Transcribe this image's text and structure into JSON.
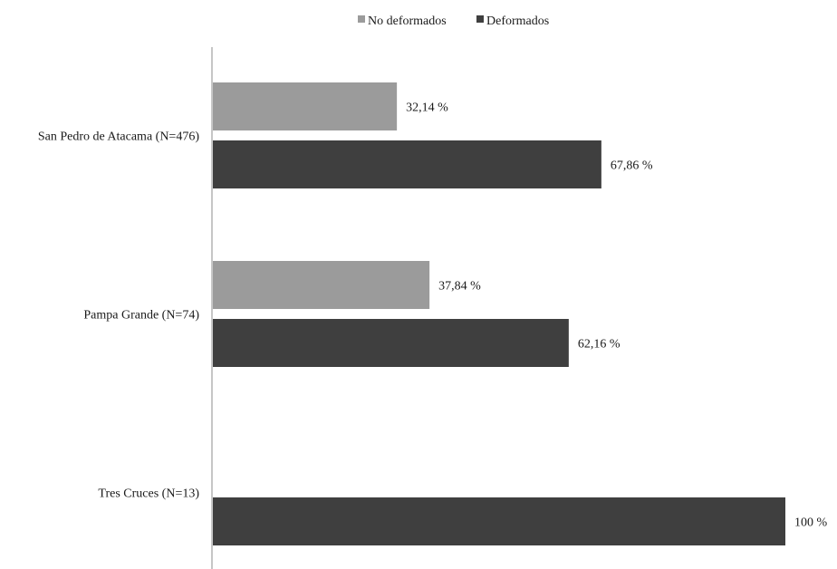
{
  "chart_data": {
    "type": "bar",
    "orientation": "horizontal",
    "legend": {
      "placement": "top-center",
      "items": [
        {
          "name": "No deformados",
          "color": "#9b9b9b"
        },
        {
          "name": "Deformados",
          "color": "#3f3f3f"
        }
      ]
    },
    "categories": [
      "San Pedro de Atacama (N=476)",
      "Pampa Grande (N=74)",
      "Tres Cruces (N=13)"
    ],
    "series": [
      {
        "name": "No deformados",
        "color": "#9b9b9b",
        "values": [
          32.14,
          37.84,
          null
        ],
        "labels": [
          "32,14 %",
          "37,84 %",
          ""
        ]
      },
      {
        "name": "Deformados",
        "color": "#3f3f3f",
        "values": [
          67.86,
          62.16,
          100
        ],
        "labels": [
          "67,86 %",
          "62,16 %",
          "100 %"
        ]
      }
    ],
    "xlim": [
      0,
      100
    ],
    "grid": false,
    "axis_color": "#8c8c8c"
  }
}
